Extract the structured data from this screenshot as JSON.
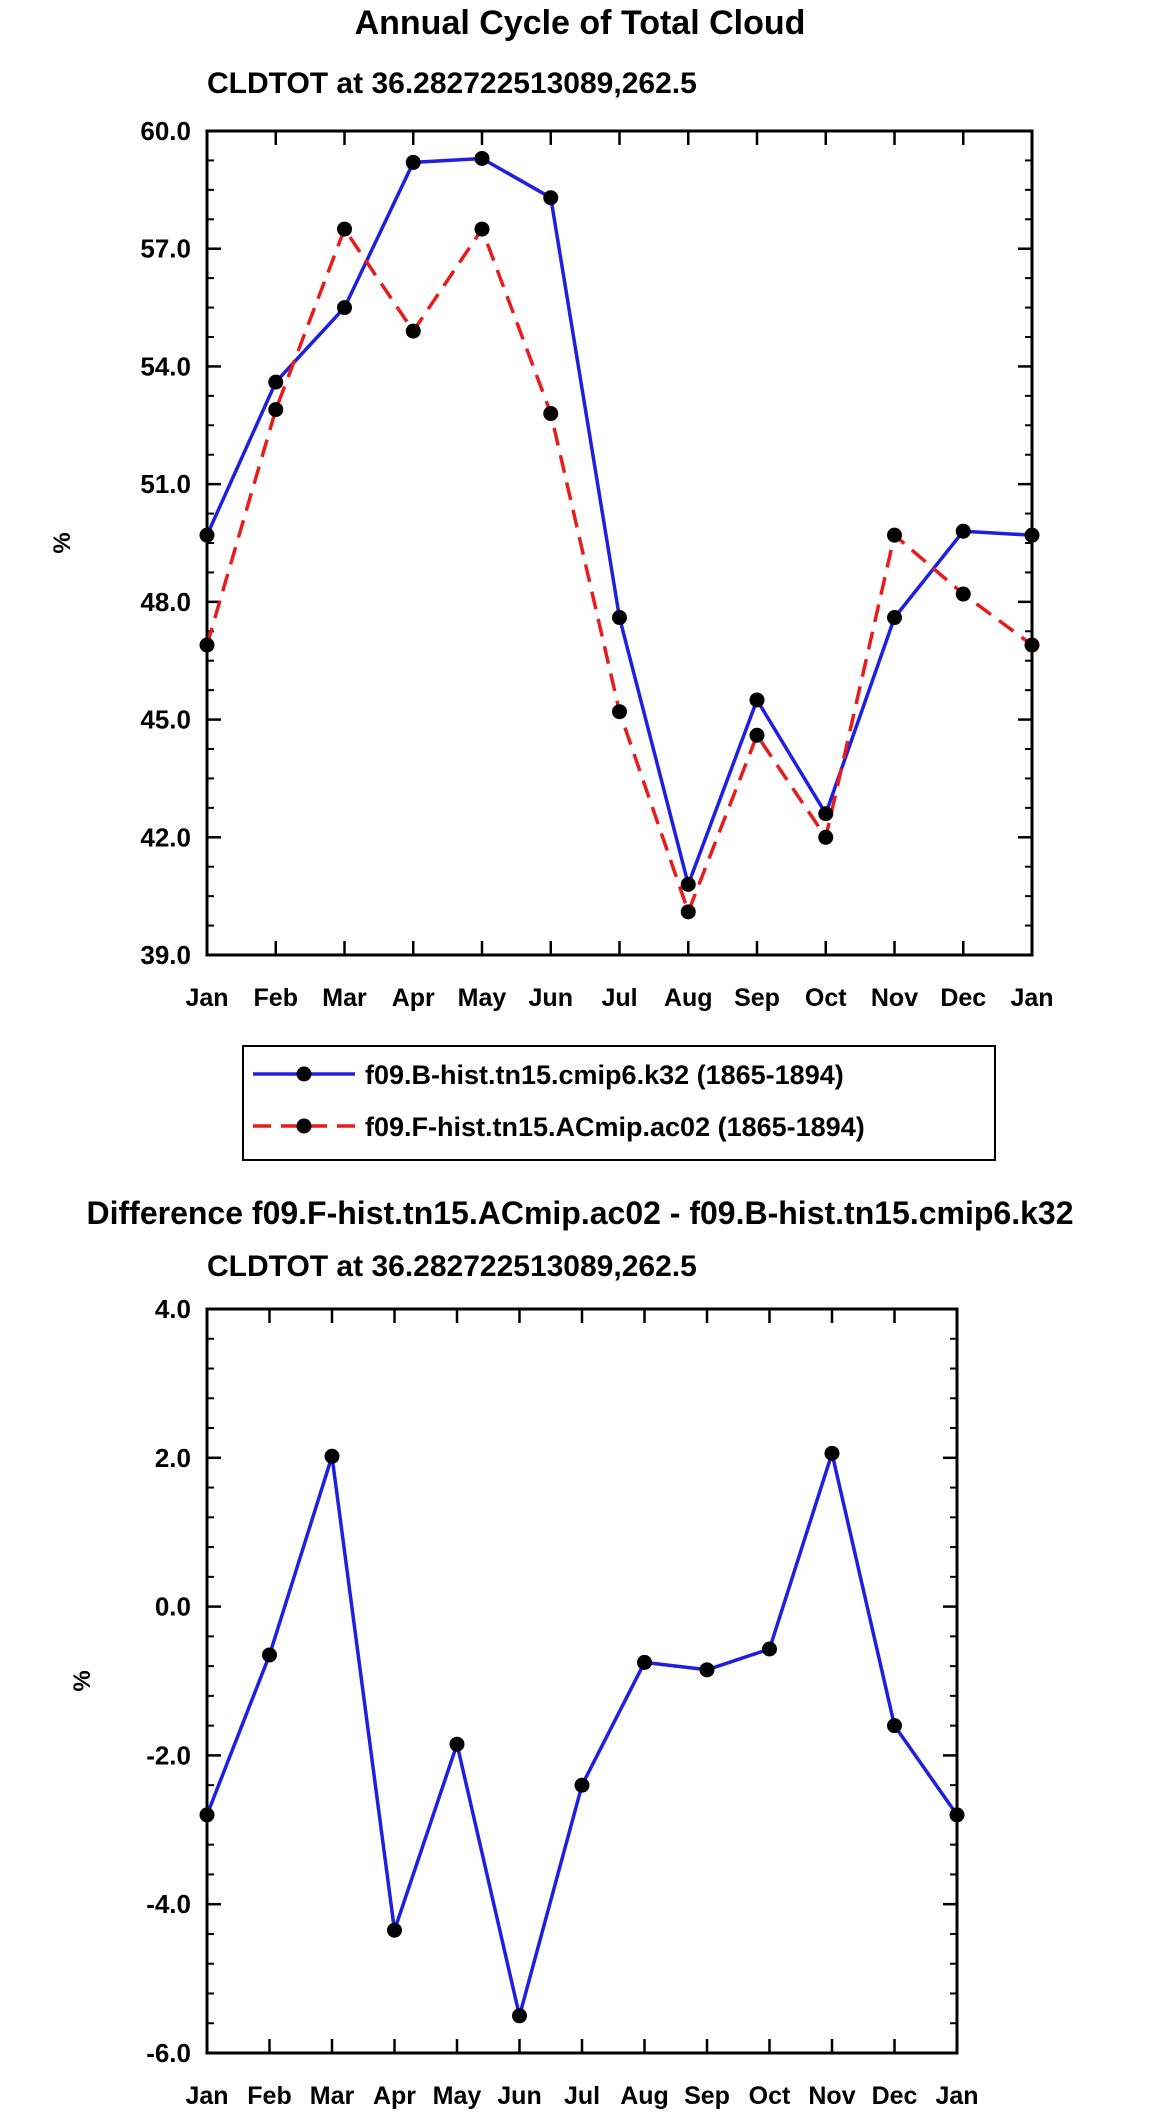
{
  "chart_data": [
    {
      "type": "line",
      "title": "Annual Cycle of Total Cloud",
      "subtitle": "CLDTOT at 36.282722513089,262.5",
      "xlabel": "",
      "ylabel": "%",
      "categories": [
        "Jan",
        "Feb",
        "Mar",
        "Apr",
        "May",
        "Jun",
        "Jul",
        "Aug",
        "Sep",
        "Oct",
        "Nov",
        "Dec",
        "Jan"
      ],
      "ylim": [
        39.0,
        60.0
      ],
      "yticks": [
        "39.0",
        "42.0",
        "45.0",
        "48.0",
        "51.0",
        "54.0",
        "57.0",
        "60.0"
      ],
      "legend_position": "bottom",
      "series": [
        {
          "name": "f09.B-hist.tn15.cmip6.k32 (1865-1894)",
          "color": "#1f1fe0",
          "style": "solid",
          "values": [
            49.7,
            53.6,
            55.5,
            59.2,
            59.3,
            58.3,
            47.6,
            40.8,
            45.5,
            42.6,
            47.6,
            49.8,
            49.7
          ]
        },
        {
          "name": "f09.F-hist.tn15.ACmip.ac02 (1865-1894)",
          "color": "#e81c1c",
          "style": "dashed",
          "values": [
            46.9,
            52.9,
            57.5,
            54.9,
            57.5,
            52.8,
            45.2,
            40.1,
            44.6,
            42.0,
            49.7,
            48.2,
            46.9
          ]
        }
      ]
    },
    {
      "type": "line",
      "title": "Difference f09.F-hist.tn15.ACmip.ac02 - f09.B-hist.tn15.cmip6.k32",
      "subtitle": "CLDTOT at 36.282722513089,262.5",
      "xlabel": "",
      "ylabel": "%",
      "categories": [
        "Jan",
        "Feb",
        "Mar",
        "Apr",
        "May",
        "Jun",
        "Jul",
        "Aug",
        "Sep",
        "Oct",
        "Nov",
        "Dec",
        "Jan"
      ],
      "ylim": [
        -6.0,
        4.0
      ],
      "yticks": [
        "-6.0",
        "-4.0",
        "-2.0",
        "0.0",
        "2.0",
        "4.0"
      ],
      "series": [
        {
          "name": "Difference",
          "color": "#1f1fe0",
          "style": "solid",
          "values": [
            -2.8,
            -0.65,
            2.02,
            -4.35,
            -1.85,
            -5.5,
            -2.4,
            -0.75,
            -0.85,
            -0.57,
            2.06,
            -1.6,
            -2.8
          ]
        }
      ]
    }
  ]
}
